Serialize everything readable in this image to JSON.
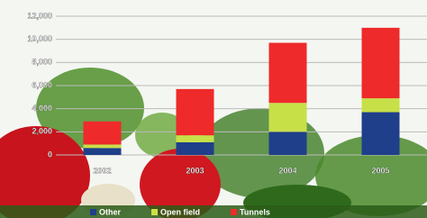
{
  "chart_data": {
    "type": "bar",
    "stacked": true,
    "categories": [
      "2002",
      "2003",
      "2004",
      "2005"
    ],
    "series": [
      {
        "name": "Other",
        "color": "#1f3f8a",
        "values": [
          600,
          1100,
          2000,
          3700
        ]
      },
      {
        "name": "Open field",
        "color": "#c8e048",
        "values": [
          300,
          600,
          2500,
          1200
        ]
      },
      {
        "name": "Tunnels",
        "color": "#ee2a2a",
        "values": [
          2000,
          4000,
          5200,
          6100
        ]
      }
    ],
    "ylim": [
      0,
      12000
    ],
    "yticks": [
      {
        "value": 0,
        "label": "0"
      },
      {
        "value": 2000,
        "label": "2,000"
      },
      {
        "value": 4000,
        "label": "4,000"
      },
      {
        "value": 6000,
        "label": "6,000"
      },
      {
        "value": 8000,
        "label": "8,000"
      },
      {
        "value": 10000,
        "label": "10,000"
      },
      {
        "value": 12000,
        "label": "12,000"
      }
    ],
    "grid": true
  }
}
